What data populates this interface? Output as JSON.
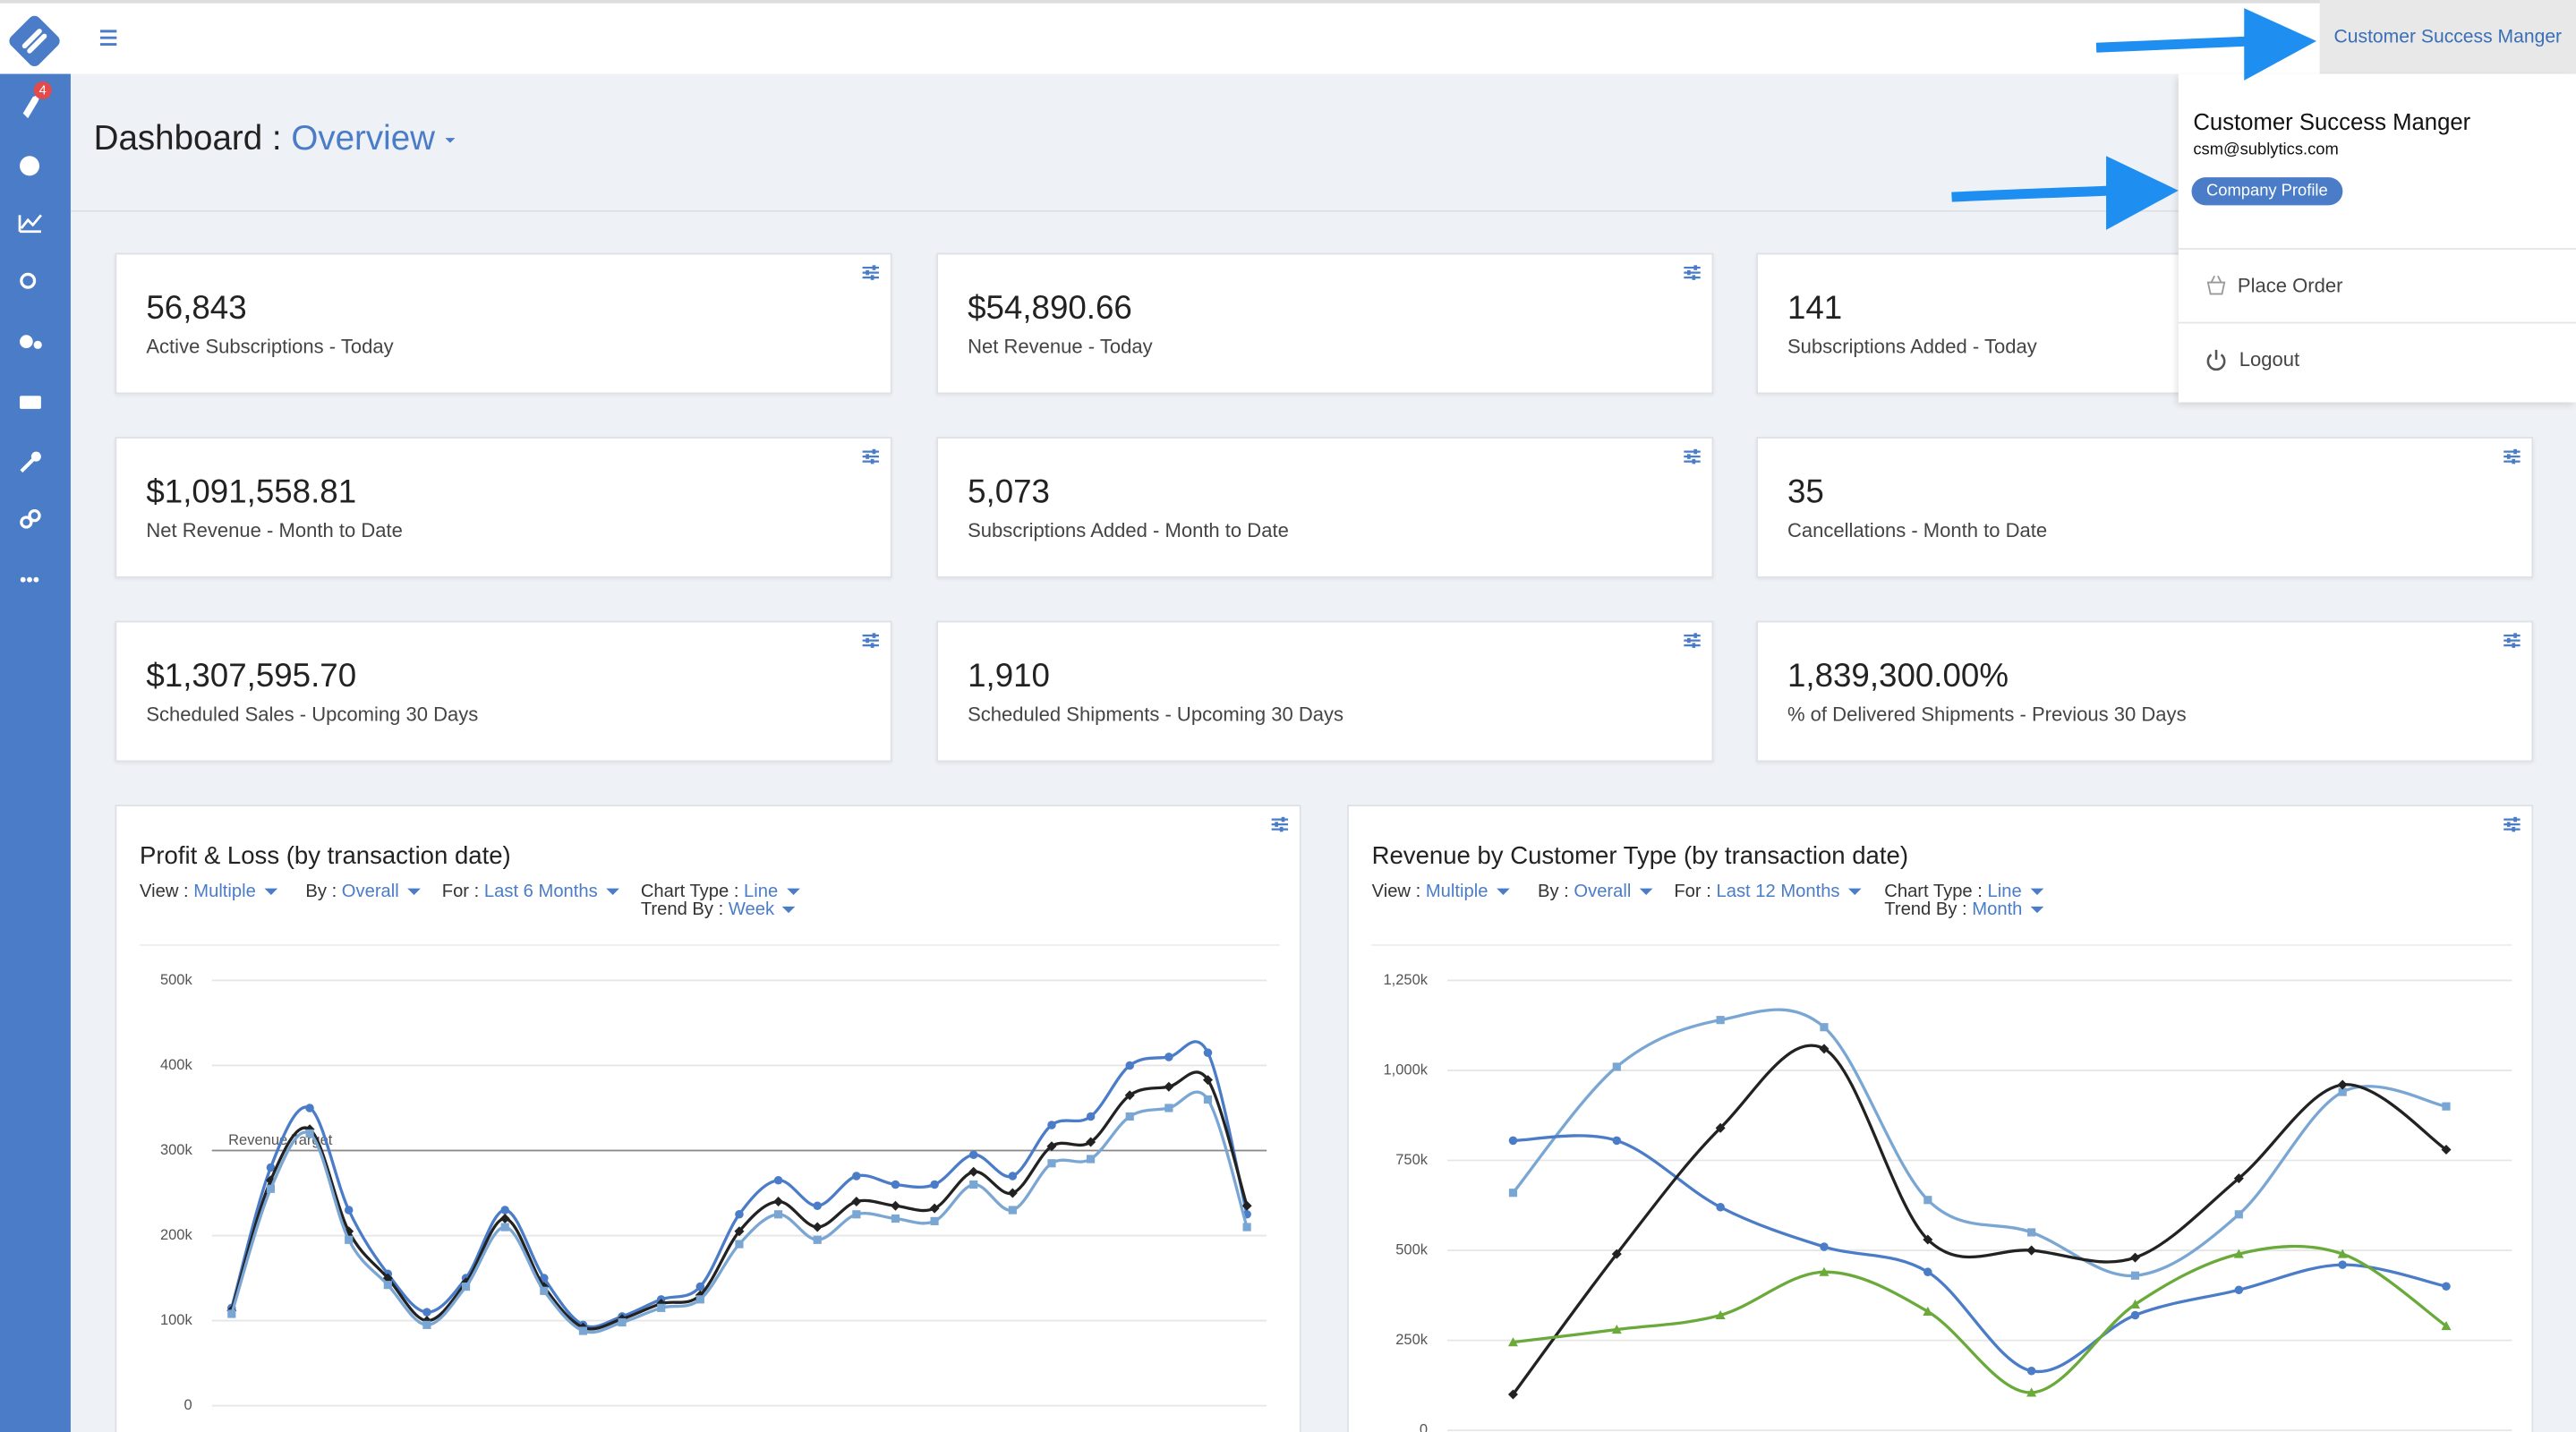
{
  "header": {
    "user_button": "Customer Success Manger"
  },
  "sidebar": {
    "badge": "4"
  },
  "page": {
    "title": "Dashboard :",
    "view": "Overview"
  },
  "user_menu": {
    "name": "Customer Success Manger",
    "email": "csm@sublytics.com",
    "profile_button": "Company Profile",
    "items": [
      "Place Order",
      "Logout"
    ]
  },
  "stat_cards": [
    {
      "value": "56,843",
      "label": "Active Subscriptions - Today"
    },
    {
      "value": "$54,890.66",
      "label": "Net Revenue - Today"
    },
    {
      "value": "141",
      "label": "Subscriptions Added - Today"
    },
    {
      "value": "$1,091,558.81",
      "label": "Net Revenue - Month to Date"
    },
    {
      "value": "5,073",
      "label": "Subscriptions Added - Month to Date"
    },
    {
      "value": "35",
      "label": "Cancellations - Month to Date"
    },
    {
      "value": "$1,307,595.70",
      "label": "Scheduled Sales - Upcoming 30 Days"
    },
    {
      "value": "1,910",
      "label": "Scheduled Shipments - Upcoming 30 Days"
    },
    {
      "value": "1,839,300.00%",
      "label": "% of Delivered Shipments - Previous 30 Days"
    }
  ],
  "chart_data": [
    {
      "type": "line",
      "title": "Profit & Loss (by transaction date)",
      "filters": [
        {
          "label": "View :",
          "value": "Multiple"
        },
        {
          "label": "By :",
          "value": "Overall"
        },
        {
          "label": "For :",
          "value": "Last 6 Months"
        },
        {
          "label": "Chart Type :",
          "value": "Line"
        },
        {
          "label": "Trend By :",
          "value": "Week"
        }
      ],
      "ylim": [
        0,
        500000
      ],
      "yticks": [
        {
          "value": 0,
          "label": "0"
        },
        {
          "value": 100000,
          "label": "100k"
        },
        {
          "value": 200000,
          "label": "200k"
        },
        {
          "value": 300000,
          "label": "300k"
        },
        {
          "value": 400000,
          "label": "400k"
        },
        {
          "value": 500000,
          "label": "500k"
        }
      ],
      "grid": true,
      "annotation": {
        "text": "Revenue Target",
        "value": 300000
      },
      "categories": [
        null,
        null,
        null,
        null,
        null,
        null,
        null,
        null,
        null,
        null,
        null,
        null,
        null,
        null,
        null,
        null,
        null,
        null,
        null,
        null,
        null,
        null,
        null,
        null,
        null,
        null,
        null
      ],
      "series": [
        {
          "color": "#4a7cc7",
          "marker": "circle",
          "values": [
            115000,
            280000,
            350000,
            230000,
            155000,
            110000,
            150000,
            230000,
            150000,
            95000,
            105000,
            125000,
            140000,
            225000,
            265000,
            235000,
            270000,
            260000,
            260000,
            295000,
            270000,
            330000,
            340000,
            400000,
            410000,
            415000,
            225000
          ]
        },
        {
          "color": "#222222",
          "marker": "diamond",
          "values": [
            112000,
            265000,
            325000,
            205000,
            150000,
            100000,
            145000,
            220000,
            140000,
            92000,
            102000,
            120000,
            130000,
            205000,
            240000,
            210000,
            240000,
            235000,
            232000,
            275000,
            250000,
            305000,
            310000,
            365000,
            375000,
            383000,
            235000
          ]
        },
        {
          "color": "#7aa6d4",
          "marker": "square",
          "values": [
            108000,
            255000,
            320000,
            195000,
            142000,
            95000,
            140000,
            210000,
            135000,
            88000,
            98000,
            115000,
            125000,
            190000,
            225000,
            195000,
            225000,
            220000,
            217000,
            260000,
            230000,
            285000,
            290000,
            340000,
            350000,
            360000,
            210000
          ]
        }
      ]
    },
    {
      "type": "line",
      "title": "Revenue by Customer Type (by transaction date)",
      "filters": [
        {
          "label": "View :",
          "value": "Multiple"
        },
        {
          "label": "By :",
          "value": "Overall"
        },
        {
          "label": "For :",
          "value": "Last 12 Months"
        },
        {
          "label": "Chart Type :",
          "value": "Line"
        },
        {
          "label": "Trend By :",
          "value": "Month"
        }
      ],
      "ylim": [
        0,
        1250000
      ],
      "yticks": [
        {
          "value": 0,
          "label": "0"
        },
        {
          "value": 250000,
          "label": "250k"
        },
        {
          "value": 500000,
          "label": "500k"
        },
        {
          "value": 750000,
          "label": "750k"
        },
        {
          "value": 1000000,
          "label": "1,000k"
        },
        {
          "value": 1250000,
          "label": "1,250k"
        }
      ],
      "grid": true,
      "categories": [
        null,
        null,
        null,
        null,
        null,
        null,
        null,
        null,
        null,
        null
      ],
      "series": [
        {
          "color": "#7aa6d4",
          "marker": "square",
          "values": [
            660000,
            1010000,
            1140000,
            1120000,
            640000,
            550000,
            430000,
            600000,
            940000,
            900000
          ]
        },
        {
          "color": "#4a7cc7",
          "marker": "circle",
          "values": [
            805000,
            805000,
            620000,
            510000,
            440000,
            165000,
            320000,
            390000,
            460000,
            400000
          ]
        },
        {
          "color": "#222222",
          "marker": "diamond",
          "values": [
            100000,
            490000,
            840000,
            1060000,
            530000,
            500000,
            480000,
            700000,
            960000,
            780000
          ]
        },
        {
          "color": "#6aaa3a",
          "marker": "triangle",
          "values": [
            245000,
            280000,
            320000,
            440000,
            330000,
            105000,
            350000,
            490000,
            490000,
            290000
          ]
        }
      ]
    }
  ]
}
